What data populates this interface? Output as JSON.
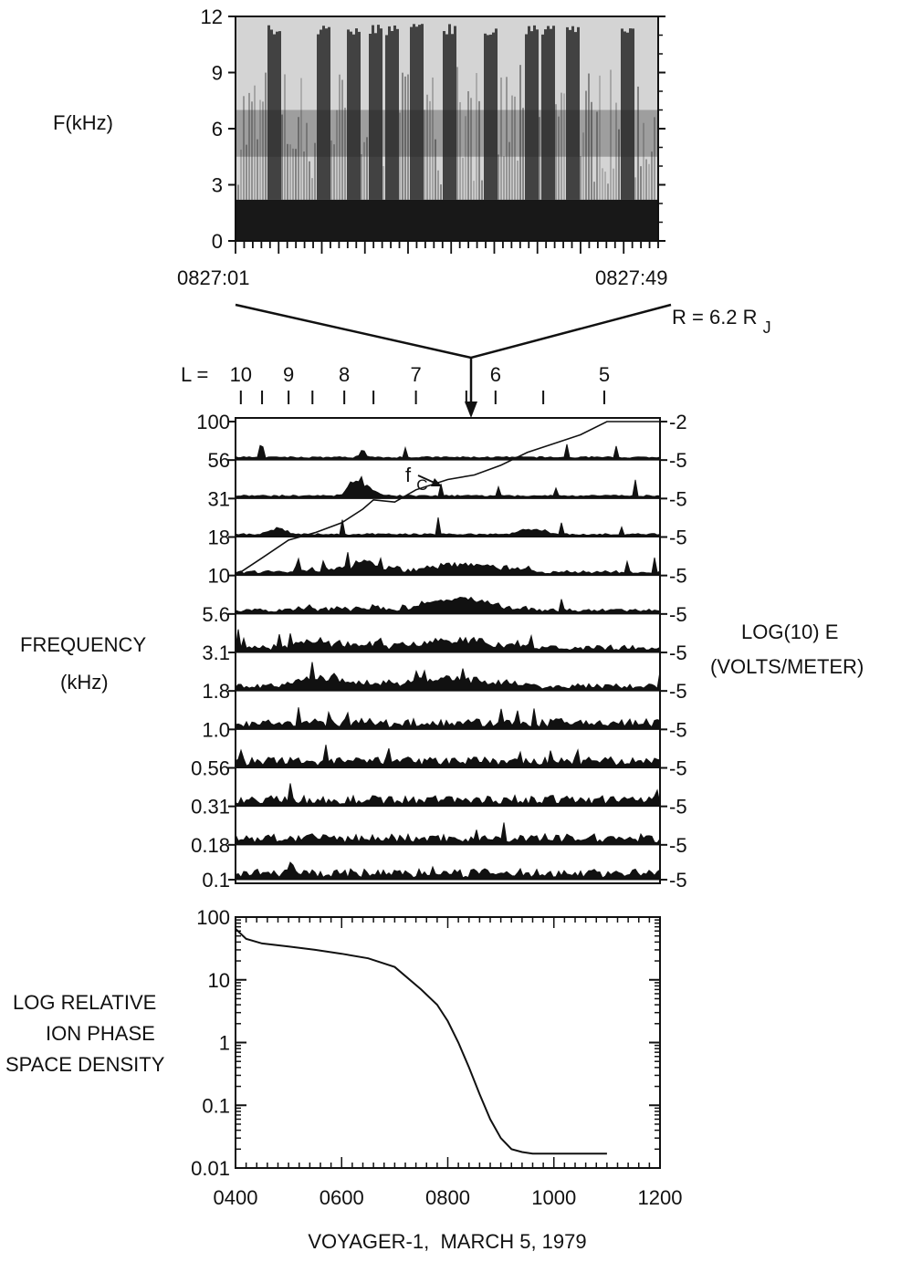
{
  "chart_data": [
    {
      "type": "heatmap",
      "ylabel": "F(kHz)",
      "ylim": [
        0,
        12
      ],
      "yticks": [
        "0",
        "3",
        "6",
        "9",
        "12"
      ],
      "time_start": "0827:01",
      "time_end": "0827:49",
      "note": "R = 6.2 R",
      "note_sub": "J"
    },
    {
      "type": "area",
      "ylabel": [
        "FREQUENCY",
        "(kHz)"
      ],
      "right_label": [
        "LOG(10) E",
        "(VOLTS/METER)"
      ],
      "channels": [
        "100",
        "56",
        "31",
        "18",
        "10",
        "5.6",
        "3.1",
        "1.8",
        "1.0",
        "0.56",
        "0.31",
        "0.18",
        "0.1"
      ],
      "right_scale": [
        "-2",
        "-5",
        "-5",
        "-5",
        "-5",
        "-5",
        "-5",
        "-5",
        "-5",
        "-5",
        "-5",
        "-5",
        "-5"
      ],
      "l_shell_prefix": "L =",
      "l_shell_values": [
        {
          "label": "10",
          "time": 410
        },
        {
          "label": "9",
          "time": 500
        },
        {
          "label": "8",
          "time": 605
        },
        {
          "label": "7",
          "time": 740
        },
        {
          "label": "6",
          "time": 890
        },
        {
          "label": "5",
          "time": 1095
        }
      ],
      "fc_label": "f",
      "fc_sub": "C",
      "fc_curve": [
        [
          400,
          10
        ],
        [
          450,
          13
        ],
        [
          500,
          17
        ],
        [
          550,
          19
        ],
        [
          600,
          22
        ],
        [
          640,
          27
        ],
        [
          660,
          31
        ],
        [
          700,
          30
        ],
        [
          740,
          36
        ],
        [
          800,
          42
        ],
        [
          850,
          45
        ],
        [
          900,
          52
        ],
        [
          950,
          63
        ],
        [
          1000,
          72
        ],
        [
          1050,
          82
        ],
        [
          1100,
          100
        ],
        [
          1200,
          100
        ]
      ]
    },
    {
      "type": "line",
      "ylabel": [
        "LOG RELATIVE",
        "ION PHASE",
        "SPACE DENSITY"
      ],
      "xlabel": "VOYAGER-1,  MARCH 5, 1979",
      "yscale": "log",
      "ylim": [
        0.01,
        100
      ],
      "yticks": [
        "0.01",
        "0.1",
        "1",
        "10",
        "100"
      ],
      "xlim": [
        400,
        1200
      ],
      "xticks": [
        "0400",
        "0600",
        "0800",
        "1000",
        "1200"
      ],
      "series": [
        {
          "x": [
            400,
            420,
            450,
            500,
            550,
            600,
            650,
            700,
            750,
            780,
            800,
            820,
            840,
            860,
            880,
            900,
            920,
            940,
            960,
            1000,
            1100
          ],
          "y": [
            65,
            45,
            38,
            34,
            30,
            26,
            22,
            16,
            7,
            4,
            2.2,
            1.0,
            0.4,
            0.15,
            0.06,
            0.03,
            0.02,
            0.018,
            0.017,
            0.017,
            0.017
          ]
        }
      ]
    }
  ]
}
